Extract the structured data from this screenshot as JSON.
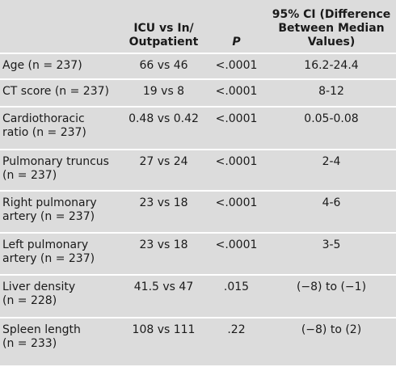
{
  "table": {
    "header": [
      [],
      [
        "ICU vs In/",
        "Outpatient"
      ],
      [
        "P"
      ],
      [
        "95% CI (Difference",
        "Between Median",
        "Values)"
      ]
    ],
    "rows": [
      [
        [
          "Age (n = 237)"
        ],
        "66 vs 46",
        "<.0001",
        "16.2-24.4"
      ],
      [
        [
          "CT score (n = 237)"
        ],
        "19 vs 8",
        "<.0001",
        "8-12"
      ],
      [
        [
          "Cardiothoracic",
          "ratio (n = 237)"
        ],
        "0.48 vs 0.42",
        "<.0001",
        "0.05-0.08"
      ],
      [
        [
          "Pulmonary truncus",
          "(n = 237)"
        ],
        "27 vs 24",
        "<.0001",
        "2-4"
      ],
      [
        [
          "Right pulmonary",
          "artery (n = 237)"
        ],
        "23 vs 18",
        "<.0001",
        "4-6"
      ],
      [
        [
          "Left pulmonary",
          "artery (n = 237)"
        ],
        "23 vs 18",
        "<.0001",
        "3-5"
      ],
      [
        [
          "Liver density",
          "(n = 228)"
        ],
        "41.5 vs 47",
        ".015",
        "(−8) to (−1)"
      ],
      [
        [
          "Spleen length",
          "(n = 233)"
        ],
        "108 vs 111",
        ".22",
        "(−8) to (2)"
      ]
    ]
  }
}
